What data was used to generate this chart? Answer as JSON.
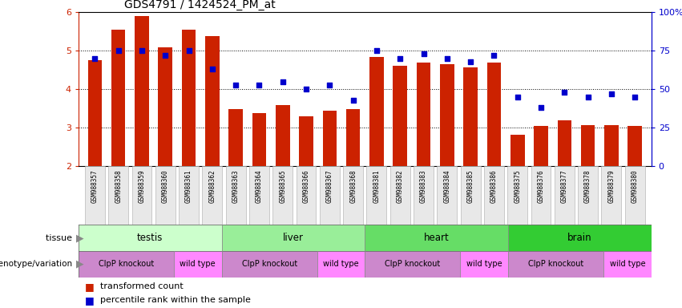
{
  "title": "GDS4791 / 1424524_PM_at",
  "samples": [
    "GSM988357",
    "GSM988358",
    "GSM988359",
    "GSM988360",
    "GSM988361",
    "GSM988362",
    "GSM988363",
    "GSM988364",
    "GSM988365",
    "GSM988366",
    "GSM988367",
    "GSM988368",
    "GSM988381",
    "GSM988382",
    "GSM988383",
    "GSM988384",
    "GSM988385",
    "GSM988386",
    "GSM988375",
    "GSM988376",
    "GSM988377",
    "GSM988378",
    "GSM988379",
    "GSM988380"
  ],
  "bar_values": [
    4.75,
    5.55,
    5.9,
    5.1,
    5.55,
    5.38,
    3.48,
    3.38,
    3.6,
    3.3,
    3.45,
    3.48,
    4.85,
    4.62,
    4.7,
    4.65,
    4.58,
    4.7,
    2.82,
    3.05,
    3.2,
    3.08,
    3.08,
    3.05
  ],
  "dot_pct": [
    70,
    75,
    75,
    72,
    75,
    63,
    53,
    53,
    55,
    50,
    53,
    43,
    75,
    70,
    73,
    70,
    68,
    72,
    45,
    38,
    48,
    45,
    47,
    45
  ],
  "ylim": [
    2,
    6
  ],
  "yticks": [
    2,
    3,
    4,
    5,
    6
  ],
  "right_yticks": [
    0,
    25,
    50,
    75,
    100
  ],
  "right_ytick_labels": [
    "0",
    "25",
    "50",
    "75",
    "100%"
  ],
  "hlines": [
    3,
    4,
    5
  ],
  "tissue_groups": [
    {
      "label": "testis",
      "start": 0,
      "end": 6,
      "color": "#ccffcc"
    },
    {
      "label": "liver",
      "start": 6,
      "end": 12,
      "color": "#99ee99"
    },
    {
      "label": "heart",
      "start": 12,
      "end": 18,
      "color": "#66dd66"
    },
    {
      "label": "brain",
      "start": 18,
      "end": 24,
      "color": "#33cc33"
    }
  ],
  "genotype_groups": [
    {
      "label": "ClpP knockout",
      "start": 0,
      "end": 4,
      "color": "#cc88cc"
    },
    {
      "label": "wild type",
      "start": 4,
      "end": 6,
      "color": "#ff88ff"
    },
    {
      "label": "ClpP knockout",
      "start": 6,
      "end": 10,
      "color": "#cc88cc"
    },
    {
      "label": "wild type",
      "start": 10,
      "end": 12,
      "color": "#ff88ff"
    },
    {
      "label": "ClpP knockout",
      "start": 12,
      "end": 16,
      "color": "#cc88cc"
    },
    {
      "label": "wild type",
      "start": 16,
      "end": 18,
      "color": "#ff88ff"
    },
    {
      "label": "ClpP knockout",
      "start": 18,
      "end": 22,
      "color": "#cc88cc"
    },
    {
      "label": "wild type",
      "start": 22,
      "end": 24,
      "color": "#ff88ff"
    }
  ],
  "bar_color": "#cc2200",
  "dot_color": "#0000cc",
  "bar_bottom": 2.0,
  "tissue_label": "tissue",
  "genotype_label": "genotype/variation",
  "legend_bar": "transformed count",
  "legend_dot": "percentile rank within the sample",
  "bg_color": "#f0f0f0"
}
